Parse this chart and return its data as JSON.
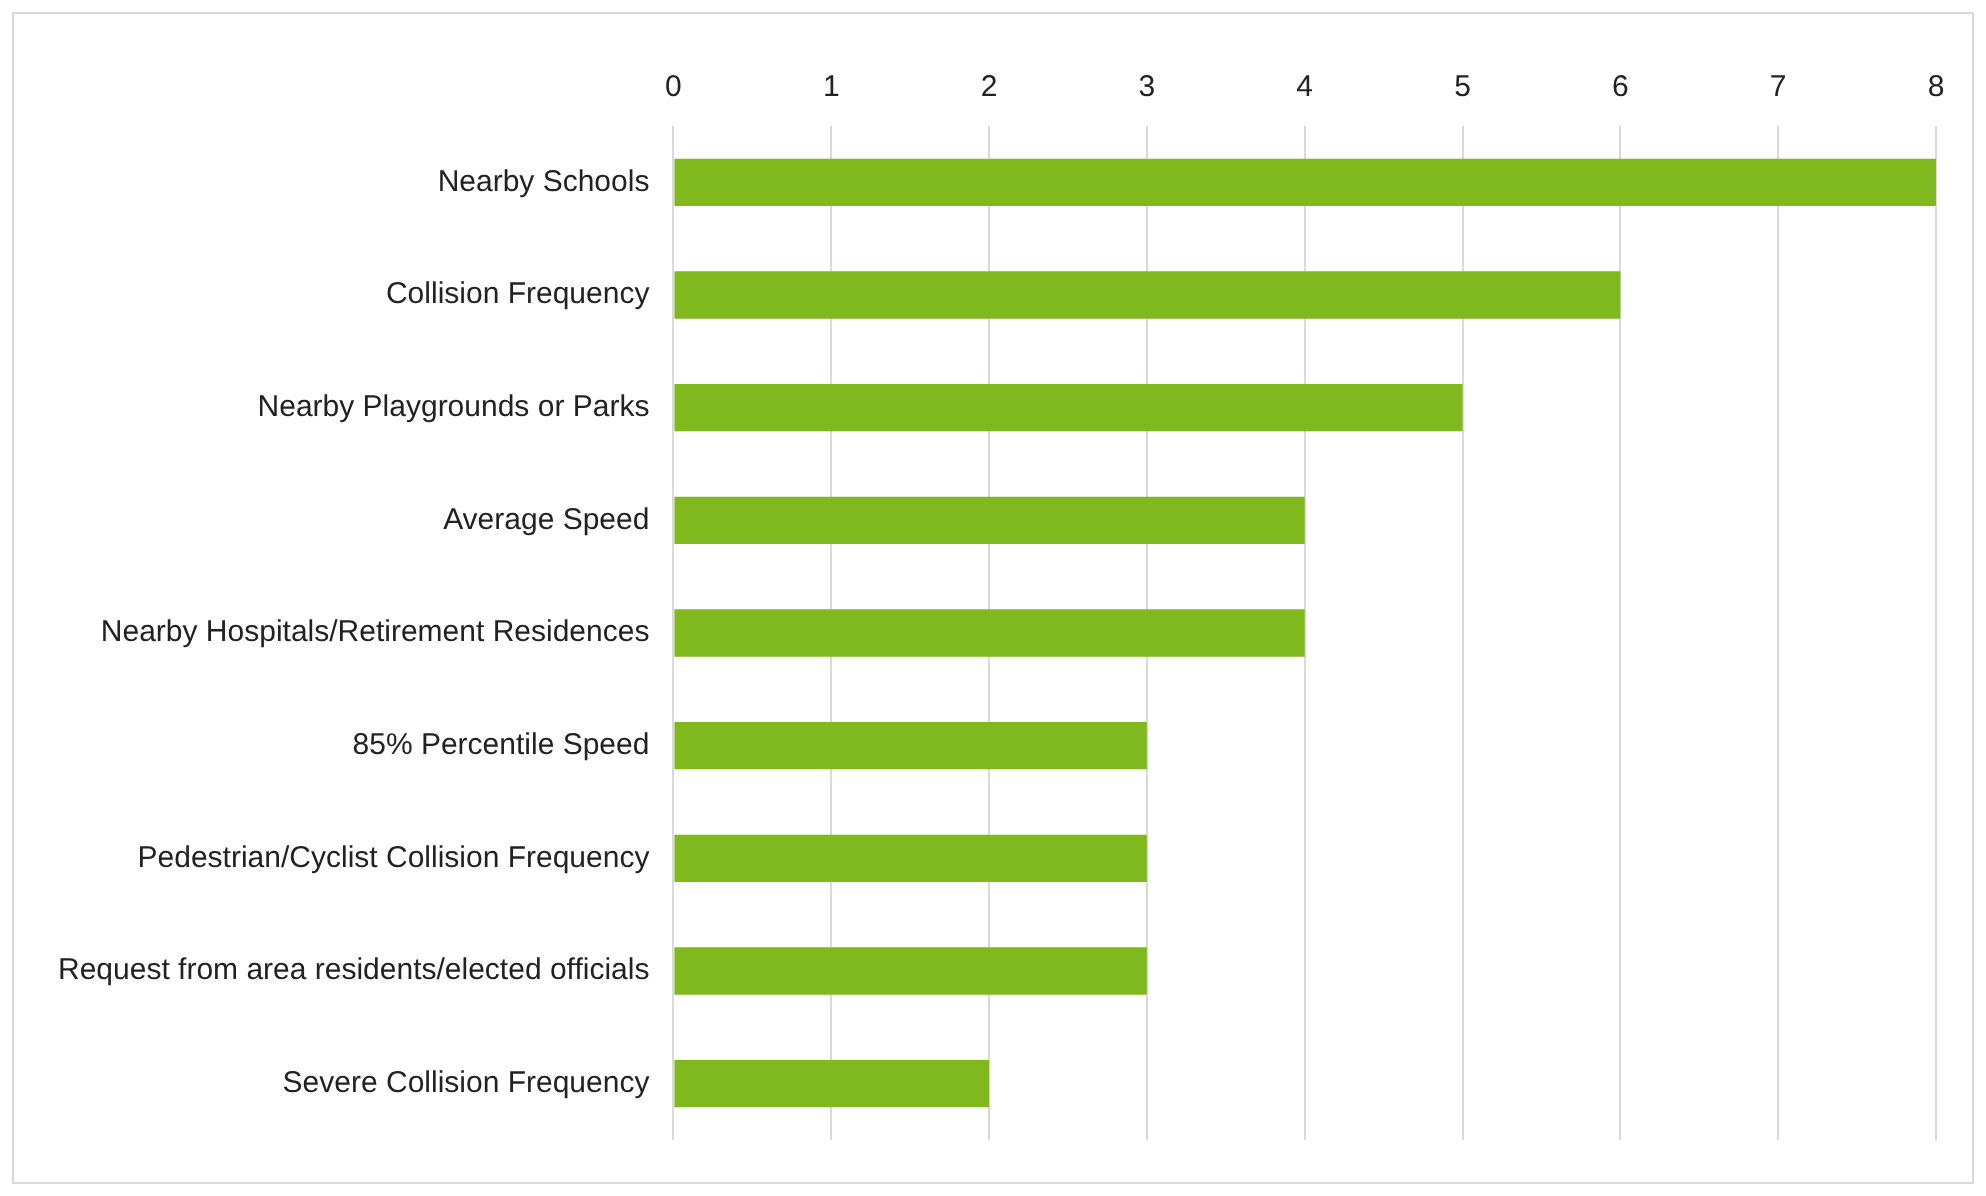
{
  "chart_data": {
    "type": "bar",
    "orientation": "horizontal",
    "categories": [
      "Nearby Schools",
      "Collision Frequency",
      "Nearby Playgrounds or Parks",
      "Average Speed",
      "Nearby Hospitals/Retirement Residences",
      "85% Percentile Speed",
      "Pedestrian/Cyclist Collision Frequency",
      "Request from area residents/elected officials",
      "Severe Collision Frequency"
    ],
    "values": [
      8,
      6,
      5,
      4,
      4,
      3,
      3,
      3,
      2
    ],
    "color": "#80b91e",
    "xlim": [
      0,
      8
    ],
    "xticks": [
      0,
      1,
      2,
      3,
      4,
      5,
      6,
      7,
      8
    ],
    "grid": "x",
    "legend": false
  }
}
